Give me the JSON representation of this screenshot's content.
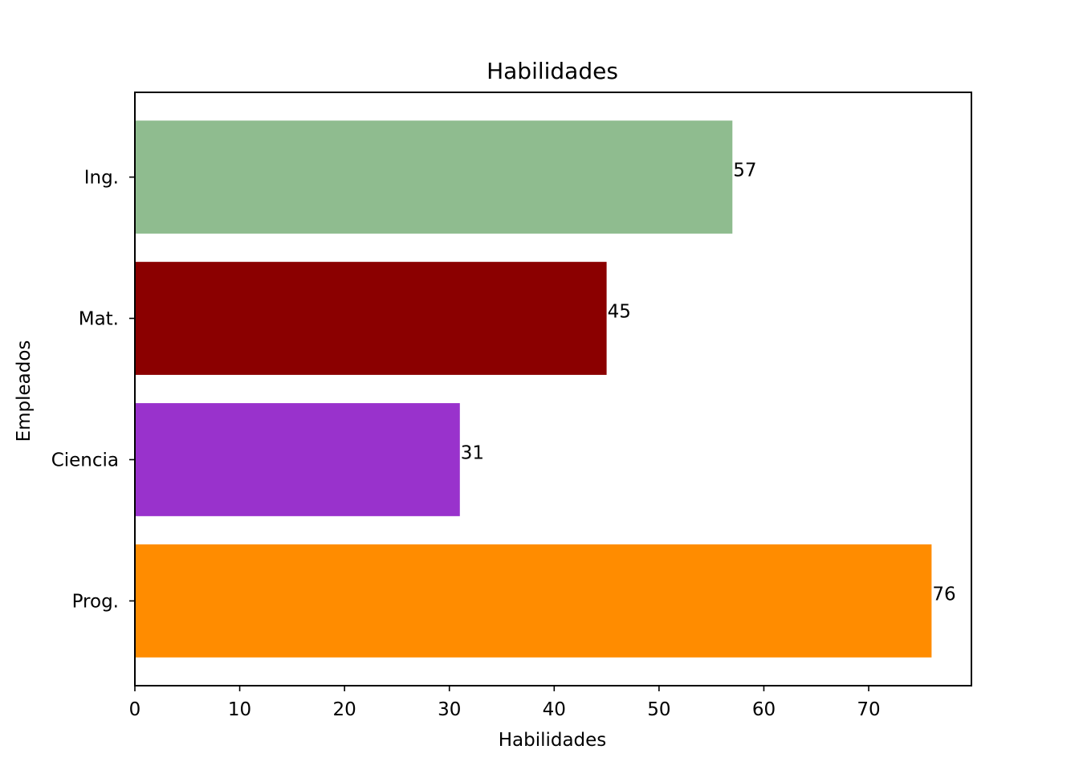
{
  "chart_data": {
    "type": "bar",
    "orientation": "horizontal",
    "title": "Habilidades",
    "xlabel": "Habilidades",
    "ylabel": "Empleados",
    "categories": [
      "Prog.",
      "Ciencia",
      "Mat.",
      "Ing."
    ],
    "values": [
      76,
      31,
      45,
      57
    ],
    "value_labels": [
      "76",
      "31",
      "45",
      "57"
    ],
    "bar_colors": [
      "#ff8c00",
      "#9932cc",
      "#8b0000",
      "#8fbc8f"
    ],
    "xlim": [
      0,
      79.8
    ],
    "xticks": [
      0,
      10,
      20,
      30,
      40,
      50,
      60,
      70
    ],
    "xtick_labels": [
      "0",
      "10",
      "20",
      "30",
      "40",
      "50",
      "60",
      "70"
    ],
    "grid": false,
    "legend": "none"
  }
}
